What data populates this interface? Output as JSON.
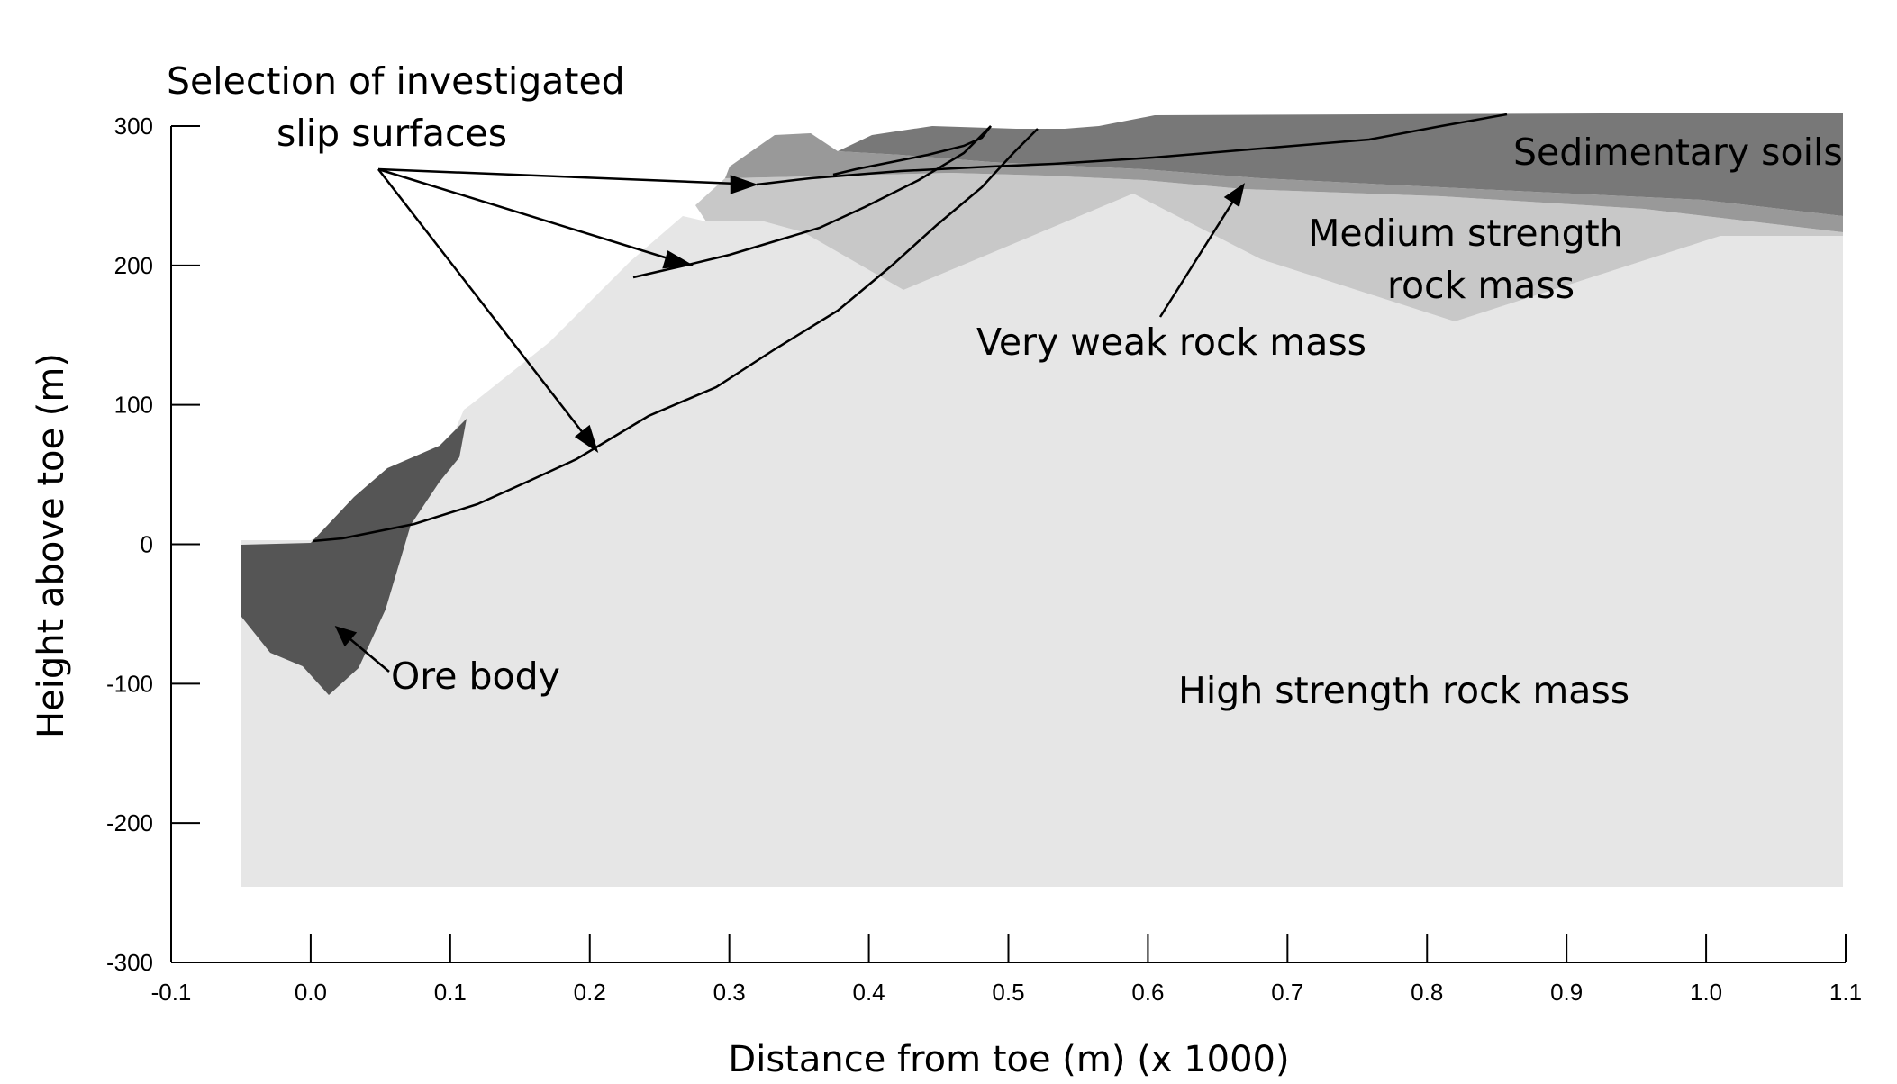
{
  "axes": {
    "xlabel": "Distance from toe (m) (x  1000)",
    "ylabel": "Height above toe (m)",
    "xlim": [
      -0.1,
      1.1
    ],
    "ylim": [
      -300,
      300
    ],
    "xticks": [
      -0.1,
      0.0,
      0.1,
      0.2,
      0.3,
      0.4,
      0.5,
      0.6,
      0.7,
      0.8,
      0.9,
      1.0,
      1.1
    ],
    "xtick_labels": [
      "-0.1",
      "0.0",
      "0.1",
      "0.2",
      "0.3",
      "0.4",
      "0.5",
      "0.6",
      "0.7",
      "0.8",
      "0.9",
      "1.0",
      "1.1"
    ],
    "yticks": [
      -300,
      -200,
      -100,
      0,
      100,
      200,
      300
    ],
    "ytick_labels": [
      "-300",
      "-200",
      "-100",
      "0",
      "100",
      "200",
      "300"
    ]
  },
  "annotations": {
    "slip_line1": "Selection of investigated",
    "slip_line2": "slip surfaces",
    "sedimentary": "Sedimentary soils",
    "medium_line1": "Medium strength",
    "medium_line2": "rock mass",
    "very_weak": "Very weak rock mass",
    "ore": "Ore body",
    "high": "High strength rock mass"
  },
  "colors": {
    "high_strength": "#e6e6e6",
    "medium_strength": "#c8c8c8",
    "very_weak": "#999999",
    "sedimentary": "#787878",
    "ore_body": "#555555",
    "line": "#000000"
  }
}
